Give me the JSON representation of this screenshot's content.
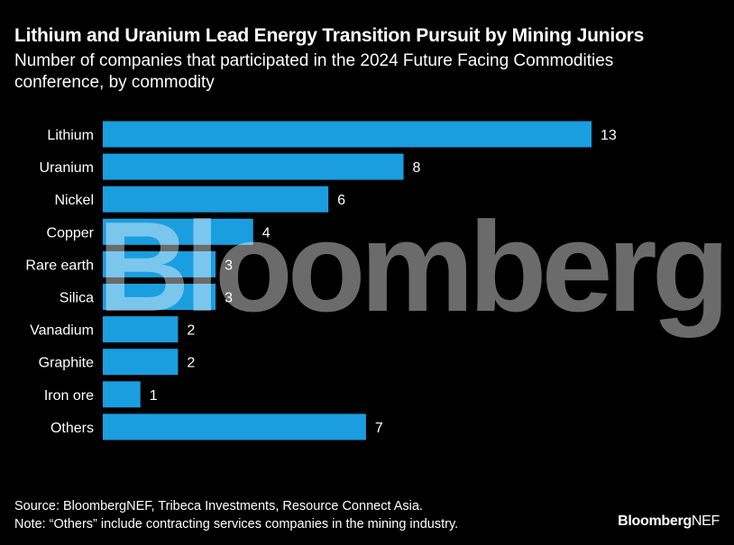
{
  "chart_data": {
    "type": "bar",
    "orientation": "horizontal",
    "title": "Lithium and Uranium Lead Energy Transition Pursuit by Mining Juniors",
    "subtitle": "Number of companies that participated in the 2024 Future Facing Commodities conference, by commodity",
    "categories": [
      "Lithium",
      "Uranium",
      "Nickel",
      "Copper",
      "Rare earth",
      "Silica",
      "Vanadium",
      "Graphite",
      "Iron ore",
      "Others"
    ],
    "values": [
      13,
      8,
      6,
      4,
      3,
      3,
      2,
      2,
      1,
      7
    ],
    "xlim": [
      0,
      13
    ],
    "bar_color": "#1a9ee0",
    "label_color": "#ffffff",
    "xlabel": "",
    "ylabel": "",
    "grid": false
  },
  "footer": {
    "source": "Source: BloombergNEF, Tribeca Investments, Resource Connect Asia.",
    "note": "Note: “Others” include contracting services companies in the mining industry.",
    "brand_bold": "Bloomberg",
    "brand_regular": "NEF"
  },
  "watermark": "Bloomberg"
}
